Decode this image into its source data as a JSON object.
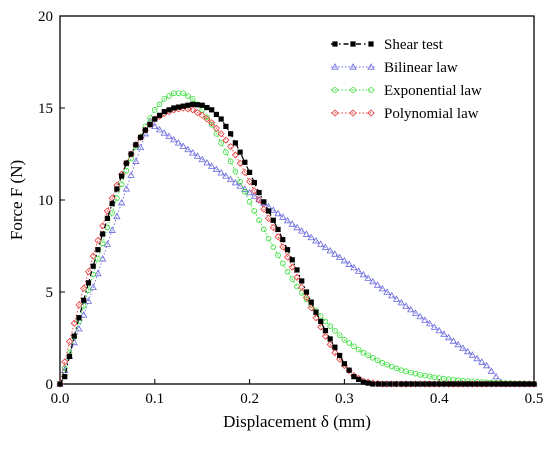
{
  "chart_data": {
    "type": "line",
    "xlabel": "Displacement δ (mm)",
    "ylabel": "Force F (N)",
    "xlim": [
      0,
      0.5
    ],
    "ylim": [
      0,
      20
    ],
    "xticks": [
      0.0,
      0.1,
      0.2,
      0.3,
      0.4,
      0.5
    ],
    "xtick_labels": [
      "0.0",
      "0.1",
      "0.2",
      "0.3",
      "0.4",
      "0.5"
    ],
    "yticks": [
      0,
      5,
      10,
      15,
      20
    ],
    "ytick_labels": [
      "0",
      "5",
      "10",
      "15",
      "20"
    ],
    "grid": false,
    "legend_position": "top-right",
    "series": [
      {
        "name": "Shear test",
        "color": "#000000",
        "marker": "square",
        "line": "dashdot",
        "points": [
          [
            0.0,
            0
          ],
          [
            0.005,
            0.4
          ],
          [
            0.01,
            1.5
          ],
          [
            0.015,
            2.6
          ],
          [
            0.02,
            3.6
          ],
          [
            0.03,
            5.5
          ],
          [
            0.04,
            7.3
          ],
          [
            0.05,
            9.0
          ],
          [
            0.06,
            10.6
          ],
          [
            0.07,
            12.0
          ],
          [
            0.08,
            13.0
          ],
          [
            0.09,
            13.8
          ],
          [
            0.1,
            14.4
          ],
          [
            0.11,
            14.8
          ],
          [
            0.12,
            15.0
          ],
          [
            0.13,
            15.1
          ],
          [
            0.14,
            15.2
          ],
          [
            0.15,
            15.15
          ],
          [
            0.16,
            14.9
          ],
          [
            0.17,
            14.4
          ],
          [
            0.18,
            13.6
          ],
          [
            0.19,
            12.6
          ],
          [
            0.2,
            11.5
          ],
          [
            0.21,
            10.4
          ],
          [
            0.22,
            9.4
          ],
          [
            0.23,
            8.4
          ],
          [
            0.24,
            7.3
          ],
          [
            0.25,
            6.2
          ],
          [
            0.26,
            5.0
          ],
          [
            0.27,
            3.9
          ],
          [
            0.28,
            2.9
          ],
          [
            0.29,
            2.0
          ],
          [
            0.3,
            1.1
          ],
          [
            0.31,
            0.4
          ],
          [
            0.32,
            0.1
          ],
          [
            0.33,
            0
          ],
          [
            0.36,
            0
          ],
          [
            0.4,
            0
          ],
          [
            0.45,
            0
          ],
          [
            0.5,
            0
          ]
        ]
      },
      {
        "name": "Bilinear law",
        "color": "#6a6adf",
        "marker": "triangle",
        "line": "dotted",
        "points": [
          [
            0.0,
            0
          ],
          [
            0.01,
            1.5
          ],
          [
            0.02,
            3.0
          ],
          [
            0.03,
            4.5
          ],
          [
            0.04,
            6.0
          ],
          [
            0.05,
            7.6
          ],
          [
            0.06,
            9.1
          ],
          [
            0.07,
            10.6
          ],
          [
            0.08,
            12.1
          ],
          [
            0.09,
            13.6
          ],
          [
            0.095,
            14.3
          ],
          [
            0.1,
            14.0
          ],
          [
            0.15,
            12.2
          ],
          [
            0.2,
            10.4
          ],
          [
            0.25,
            8.5
          ],
          [
            0.3,
            6.7
          ],
          [
            0.35,
            4.8
          ],
          [
            0.4,
            2.9
          ],
          [
            0.45,
            1.0
          ],
          [
            0.465,
            0.1
          ],
          [
            0.47,
            0
          ],
          [
            0.5,
            0
          ]
        ]
      },
      {
        "name": "Exponential law",
        "color": "#33dd33",
        "marker": "circle",
        "line": "dotted",
        "points": [
          [
            0.0,
            0
          ],
          [
            0.01,
            1.7
          ],
          [
            0.02,
            3.4
          ],
          [
            0.03,
            5.1
          ],
          [
            0.04,
            6.8
          ],
          [
            0.05,
            8.5
          ],
          [
            0.06,
            10.1
          ],
          [
            0.07,
            11.6
          ],
          [
            0.08,
            12.9
          ],
          [
            0.09,
            14.0
          ],
          [
            0.1,
            14.9
          ],
          [
            0.11,
            15.5
          ],
          [
            0.12,
            15.8
          ],
          [
            0.13,
            15.8
          ],
          [
            0.14,
            15.5
          ],
          [
            0.15,
            14.9
          ],
          [
            0.16,
            14.1
          ],
          [
            0.17,
            13.1
          ],
          [
            0.18,
            12.1
          ],
          [
            0.19,
            11.0
          ],
          [
            0.2,
            9.9
          ],
          [
            0.21,
            8.9
          ],
          [
            0.22,
            7.9
          ],
          [
            0.23,
            7.0
          ],
          [
            0.24,
            6.1
          ],
          [
            0.25,
            5.3
          ],
          [
            0.26,
            4.6
          ],
          [
            0.27,
            4.0
          ],
          [
            0.28,
            3.4
          ],
          [
            0.29,
            2.9
          ],
          [
            0.3,
            2.4
          ],
          [
            0.32,
            1.7
          ],
          [
            0.34,
            1.15
          ],
          [
            0.36,
            0.75
          ],
          [
            0.38,
            0.5
          ],
          [
            0.4,
            0.32
          ],
          [
            0.42,
            0.2
          ],
          [
            0.44,
            0.12
          ],
          [
            0.46,
            0.07
          ],
          [
            0.48,
            0.04
          ],
          [
            0.5,
            0.02
          ]
        ]
      },
      {
        "name": "Polynomial law",
        "color": "#e83a3a",
        "marker": "diamond",
        "line": "dotted",
        "points": [
          [
            0.0,
            0
          ],
          [
            0.005,
            1.2
          ],
          [
            0.01,
            2.3
          ],
          [
            0.02,
            4.3
          ],
          [
            0.03,
            6.1
          ],
          [
            0.04,
            7.8
          ],
          [
            0.05,
            9.4
          ],
          [
            0.06,
            10.8
          ],
          [
            0.07,
            12.0
          ],
          [
            0.08,
            13.0
          ],
          [
            0.09,
            13.8
          ],
          [
            0.1,
            14.4
          ],
          [
            0.11,
            14.7
          ],
          [
            0.12,
            14.9
          ],
          [
            0.13,
            15.0
          ],
          [
            0.14,
            14.9
          ],
          [
            0.15,
            14.6
          ],
          [
            0.16,
            14.2
          ],
          [
            0.17,
            13.6
          ],
          [
            0.18,
            12.9
          ],
          [
            0.19,
            12.0
          ],
          [
            0.2,
            11.0
          ],
          [
            0.21,
            10.0
          ],
          [
            0.22,
            9.0
          ],
          [
            0.23,
            8.0
          ],
          [
            0.24,
            6.9
          ],
          [
            0.25,
            5.8
          ],
          [
            0.26,
            4.7
          ],
          [
            0.27,
            3.6
          ],
          [
            0.28,
            2.6
          ],
          [
            0.29,
            1.7
          ],
          [
            0.3,
            1.0
          ],
          [
            0.31,
            0.45
          ],
          [
            0.32,
            0.15
          ],
          [
            0.33,
            0.05
          ],
          [
            0.34,
            0
          ],
          [
            0.36,
            0
          ],
          [
            0.4,
            0
          ],
          [
            0.45,
            0
          ],
          [
            0.5,
            0
          ]
        ]
      }
    ]
  }
}
